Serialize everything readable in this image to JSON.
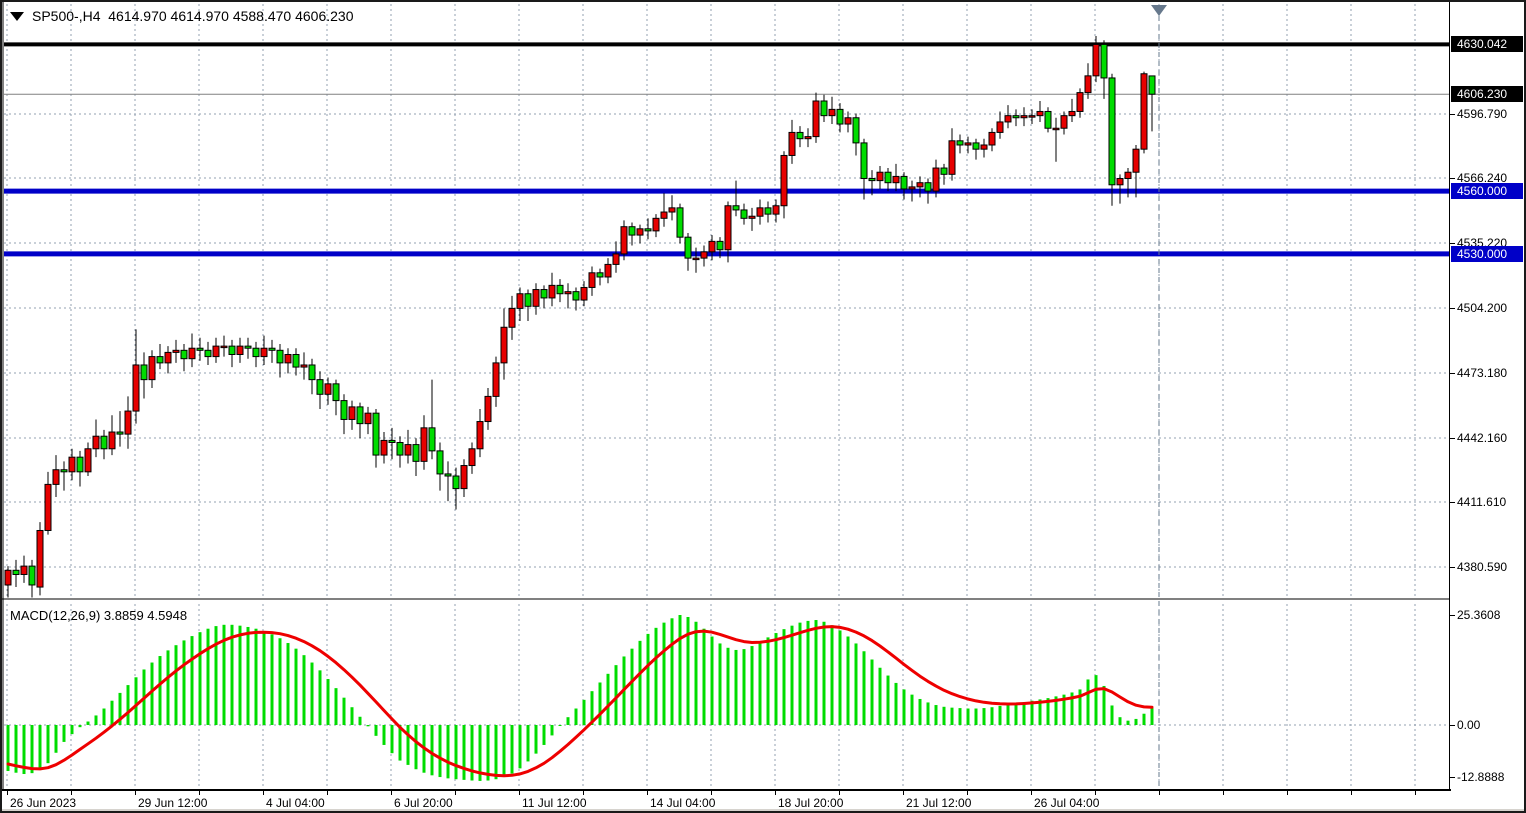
{
  "header": {
    "title": "SP500-,H4  4614.970 4614.970 4588.470 4606.230",
    "symbol": "SP500-",
    "timeframe": "H4",
    "ohlc": {
      "open": "4614.970",
      "high": "4614.970",
      "low": "4588.470",
      "close": "4606.230"
    }
  },
  "macd": {
    "label": "MACD(12,26,9) 3.8859 4.5948",
    "macd_value": "3.8859",
    "signal_value": "4.5948"
  },
  "colors": {
    "background": "#ffffff",
    "grid": "#93a1b1",
    "bull_candle": "#e60000",
    "bear_candle": "#00dc00",
    "candle_border": "#000000",
    "wick": "#000000",
    "histogram": "#00dc00",
    "signal_line": "#ee0000",
    "blue_level_line": "#0000c8",
    "black_level_line": "#000000",
    "bid_line": "#808080",
    "marker": "#66788c",
    "axis_text": "#000000"
  },
  "price_axis": {
    "ticks": [
      {
        "label": "4596.790",
        "price": 4596.79
      },
      {
        "label": "4566.240",
        "price": 4566.24
      },
      {
        "label": "4535.220",
        "price": 4535.22
      },
      {
        "label": "4504.200",
        "price": 4504.2
      },
      {
        "label": "4473.180",
        "price": 4473.18
      },
      {
        "label": "4442.160",
        "price": 4442.16
      },
      {
        "label": "4411.610",
        "price": 4411.61
      },
      {
        "label": "4380.590",
        "price": 4380.59
      }
    ],
    "markers": [
      {
        "label": "4630.042",
        "price": 4630.042,
        "bg": "#000000",
        "name": "level-label-4630"
      },
      {
        "label": "4606.230",
        "price": 4606.23,
        "bg": "#000000",
        "name": "bid-price-label"
      },
      {
        "label": "4560.000",
        "price": 4560.0,
        "bg": "#0000c8",
        "name": "level-label-4560"
      },
      {
        "label": "4530.000",
        "price": 4530.0,
        "bg": "#0000c8",
        "name": "level-label-4530"
      }
    ]
  },
  "macd_axis": {
    "labels": [
      {
        "label": "25.3608",
        "value": 25.3608
      },
      {
        "label": "0.00",
        "value": 0.0
      },
      {
        "label": "-12.8888",
        "value": -12.8888
      }
    ]
  },
  "time_axis": {
    "labels": [
      "26 Jun 2023",
      "29 Jun 12:00",
      "4 Jul 04:00",
      "6 Jul 20:00",
      "11 Jul 12:00",
      "14 Jul 04:00",
      "18 Jul 20:00",
      "21 Jul 12:00",
      "26 Jul 04:00"
    ]
  },
  "chart_data": {
    "type": "candlestick-with-macd",
    "symbol": "SP500-",
    "timeframe": "H4",
    "price_range_visible": [
      4365,
      4634
    ],
    "macd_range_visible": [
      -12.8888,
      25.3608
    ],
    "horizontal_lines": [
      {
        "price": 4630.042,
        "color": "#000000",
        "width": 4,
        "label": "4630.042"
      },
      {
        "price": 4606.23,
        "color": "#808080",
        "width": 1,
        "label": "4606.230",
        "role": "bid"
      },
      {
        "price": 4560.0,
        "color": "#0000c8",
        "width": 5,
        "label": "4560.000"
      },
      {
        "price": 4530.0,
        "color": "#0000c8",
        "width": 5,
        "label": "4530.000"
      }
    ],
    "candles": [
      [
        4372,
        4381,
        4366,
        4379
      ],
      [
        4379,
        4384,
        4371,
        4377
      ],
      [
        4377,
        4386,
        4373,
        4381
      ],
      [
        4381,
        4384,
        4366,
        4372
      ],
      [
        4371,
        4402,
        4367,
        4398
      ],
      [
        4398,
        4426,
        4396,
        4420
      ],
      [
        4420,
        4434,
        4414,
        4427
      ],
      [
        4427,
        4431,
        4417,
        4426
      ],
      [
        4426,
        4437,
        4422,
        4433
      ],
      [
        4433,
        4436,
        4419,
        4426
      ],
      [
        4426,
        4440,
        4424,
        4437
      ],
      [
        4437,
        4451,
        4433,
        4443
      ],
      [
        4443,
        4446,
        4432,
        4437
      ],
      [
        4437,
        4453,
        4434,
        4445
      ],
      [
        4445,
        4455,
        4438,
        4444
      ],
      [
        4444,
        4462,
        4437,
        4455
      ],
      [
        4455,
        4494,
        4449,
        4477
      ],
      [
        4477,
        4483,
        4461,
        4470
      ],
      [
        4470,
        4484,
        4466,
        4481
      ],
      [
        4481,
        4487,
        4475,
        4478
      ],
      [
        4478,
        4486,
        4473,
        4483
      ],
      [
        4483,
        4489,
        4478,
        4484
      ],
      [
        4484,
        4487,
        4474,
        4480
      ],
      [
        4480,
        4492,
        4476,
        4485
      ],
      [
        4485,
        4490,
        4479,
        4484
      ],
      [
        4484,
        4488,
        4477,
        4481
      ],
      [
        4481,
        4490,
        4478,
        4486
      ],
      [
        4486,
        4491,
        4481,
        4486
      ],
      [
        4486,
        4489,
        4476,
        4482
      ],
      [
        4482,
        4490,
        4478,
        4486
      ],
      [
        4486,
        4490,
        4480,
        4485
      ],
      [
        4485,
        4488,
        4476,
        4481
      ],
      [
        4481,
        4491,
        4477,
        4485
      ],
      [
        4485,
        4489,
        4478,
        4484
      ],
      [
        4484,
        4487,
        4471,
        4478
      ],
      [
        4478,
        4485,
        4473,
        4482
      ],
      [
        4482,
        4485,
        4472,
        4476
      ],
      [
        4476,
        4483,
        4470,
        4477
      ],
      [
        4477,
        4480,
        4463,
        4470
      ],
      [
        4470,
        4474,
        4456,
        4463
      ],
      [
        4463,
        4471,
        4458,
        4468
      ],
      [
        4468,
        4470,
        4453,
        4460
      ],
      [
        4460,
        4463,
        4444,
        4451
      ],
      [
        4451,
        4460,
        4446,
        4457
      ],
      [
        4457,
        4459,
        4442,
        4449
      ],
      [
        4449,
        4457,
        4444,
        4454
      ],
      [
        4454,
        4456,
        4428,
        4434
      ],
      [
        4434,
        4445,
        4430,
        4441
      ],
      [
        4441,
        4447,
        4432,
        4440
      ],
      [
        4440,
        4443,
        4428,
        4434
      ],
      [
        4434,
        4446,
        4430,
        4439
      ],
      [
        4439,
        4442,
        4424,
        4431
      ],
      [
        4431,
        4453,
        4427,
        4447
      ],
      [
        4447,
        4470,
        4432,
        4436
      ],
      [
        4436,
        4440,
        4417,
        4425
      ],
      [
        4425,
        4431,
        4412,
        4424
      ],
      [
        4424,
        4428,
        4408,
        4418
      ],
      [
        4418,
        4432,
        4414,
        4429
      ],
      [
        4429,
        4440,
        4425,
        4437
      ],
      [
        4437,
        4456,
        4433,
        4450
      ],
      [
        4450,
        4466,
        4446,
        4462
      ],
      [
        4462,
        4481,
        4457,
        4478
      ],
      [
        4478,
        4504,
        4470,
        4495
      ],
      [
        4495,
        4510,
        4489,
        4504
      ],
      [
        4504,
        4514,
        4498,
        4511
      ],
      [
        4511,
        4513,
        4498,
        4505
      ],
      [
        4505,
        4516,
        4501,
        4513
      ],
      [
        4513,
        4515,
        4504,
        4509
      ],
      [
        4509,
        4521,
        4505,
        4515
      ],
      [
        4515,
        4518,
        4507,
        4511
      ],
      [
        4511,
        4516,
        4504,
        4512
      ],
      [
        4512,
        4514,
        4503,
        4508
      ],
      [
        4508,
        4517,
        4505,
        4514
      ],
      [
        4514,
        4524,
        4510,
        4521
      ],
      [
        4521,
        4523,
        4515,
        4519
      ],
      [
        4519,
        4528,
        4516,
        4525
      ],
      [
        4525,
        4536,
        4521,
        4530
      ],
      [
        4530,
        4546,
        4527,
        4543
      ],
      [
        4543,
        4545,
        4534,
        4539
      ],
      [
        4539,
        4544,
        4535,
        4542
      ],
      [
        4542,
        4547,
        4537,
        4541
      ],
      [
        4541,
        4549,
        4538,
        4547
      ],
      [
        4547,
        4559,
        4543,
        4550
      ],
      [
        4550,
        4558,
        4546,
        4552
      ],
      [
        4552,
        4554,
        4535,
        4538
      ],
      [
        4538,
        4540,
        4522,
        4528
      ],
      [
        4528,
        4533,
        4521,
        4528
      ],
      [
        4528,
        4534,
        4524,
        4531
      ],
      [
        4531,
        4539,
        4527,
        4536
      ],
      [
        4536,
        4538,
        4528,
        4532
      ],
      [
        4532,
        4555,
        4526,
        4553
      ],
      [
        4553,
        4565,
        4548,
        4551
      ],
      [
        4551,
        4554,
        4544,
        4547
      ],
      [
        4547,
        4552,
        4541,
        4548
      ],
      [
        4548,
        4556,
        4544,
        4552
      ],
      [
        4552,
        4555,
        4545,
        4549
      ],
      [
        4549,
        4556,
        4545,
        4553
      ],
      [
        4553,
        4579,
        4547,
        4577
      ],
      [
        4577,
        4594,
        4573,
        4588
      ],
      [
        4588,
        4591,
        4581,
        4585
      ],
      [
        4585,
        4590,
        4581,
        4586
      ],
      [
        4586,
        4607,
        4583,
        4603
      ],
      [
        4603,
        4606,
        4593,
        4596
      ],
      [
        4596,
        4605,
        4592,
        4599
      ],
      [
        4599,
        4602,
        4588,
        4592
      ],
      [
        4592,
        4598,
        4588,
        4595
      ],
      [
        4595,
        4597,
        4577,
        4583
      ],
      [
        4583,
        4585,
        4556,
        4566
      ],
      [
        4566,
        4570,
        4558,
        4565
      ],
      [
        4565,
        4572,
        4561,
        4569
      ],
      [
        4569,
        4571,
        4560,
        4564
      ],
      [
        4564,
        4573,
        4560,
        4567
      ],
      [
        4567,
        4569,
        4556,
        4561
      ],
      [
        4561,
        4565,
        4555,
        4562
      ],
      [
        4562,
        4567,
        4557,
        4564
      ],
      [
        4564,
        4566,
        4554,
        4560
      ],
      [
        4560,
        4575,
        4557,
        4571
      ],
      [
        4571,
        4573,
        4563,
        4568
      ],
      [
        4568,
        4590,
        4565,
        4584
      ],
      [
        4584,
        4587,
        4578,
        4582
      ],
      [
        4582,
        4586,
        4578,
        4583
      ],
      [
        4583,
        4585,
        4575,
        4580
      ],
      [
        4580,
        4585,
        4576,
        4582
      ],
      [
        4582,
        4590,
        4579,
        4588
      ],
      [
        4588,
        4598,
        4585,
        4593
      ],
      [
        4593,
        4601,
        4590,
        4596
      ],
      [
        4596,
        4599,
        4591,
        4595
      ],
      [
        4595,
        4600,
        4591,
        4596
      ],
      [
        4596,
        4599,
        4592,
        4596
      ],
      [
        4596,
        4603,
        4593,
        4598
      ],
      [
        4598,
        4600,
        4588,
        4590
      ],
      [
        4590,
        4595,
        4574,
        4590
      ],
      [
        4590,
        4598,
        4587,
        4596
      ],
      [
        4596,
        4604,
        4593,
        4598
      ],
      [
        4598,
        4609,
        4595,
        4607
      ],
      [
        4607,
        4621,
        4604,
        4615
      ],
      [
        4615,
        4634,
        4612,
        4630
      ],
      [
        4630,
        4632,
        4604,
        4614
      ],
      [
        4614,
        4616,
        4553,
        4563
      ],
      [
        4563,
        4568,
        4554,
        4566
      ],
      [
        4566,
        4571,
        4557,
        4569
      ],
      [
        4569,
        4582,
        4557,
        4580
      ],
      [
        4580,
        4617,
        4578,
        4616
      ],
      [
        4614.97,
        4614.97,
        4588.47,
        4606.23
      ]
    ],
    "macd_histogram": [
      -10.6,
      -11.0,
      -11.3,
      -11.1,
      -10.4,
      -8.8,
      -6.4,
      -3.9,
      -2.1,
      -0.5,
      0.8,
      2.2,
      3.8,
      5.6,
      7.4,
      9.2,
      11.0,
      12.8,
      14.4,
      15.9,
      17.2,
      18.4,
      19.5,
      20.5,
      21.4,
      22.2,
      22.8,
      23.1,
      23.1,
      22.9,
      22.6,
      22.2,
      21.6,
      20.9,
      20.0,
      18.9,
      17.6,
      16.1,
      14.4,
      12.6,
      10.6,
      8.5,
      6.3,
      4.1,
      1.9,
      -0.3,
      -2.5,
      -4.6,
      -6.5,
      -8.2,
      -9.2,
      -10.2,
      -11.0,
      -11.6,
      -12.0,
      -12.3,
      -12.5,
      -12.65,
      -12.8,
      -12.89,
      -12.8,
      -12.5,
      -12.0,
      -11.2,
      -10.0,
      -8.4,
      -6.6,
      -4.6,
      -2.4,
      -0.2,
      1.8,
      3.8,
      5.8,
      7.8,
      9.8,
      11.8,
      13.8,
      15.8,
      17.6,
      19.4,
      21.0,
      22.4,
      23.6,
      24.6,
      25.36,
      24.9,
      23.8,
      22.2,
      20.4,
      18.8,
      17.8,
      17.3,
      17.5,
      18.2,
      19.2,
      20.2,
      21.2,
      22.1,
      22.9,
      23.6,
      24.0,
      24.2,
      23.8,
      23.0,
      21.8,
      20.4,
      18.8,
      17.0,
      15.1,
      13.2,
      11.4,
      9.7,
      8.2,
      7.0,
      6.0,
      5.2,
      4.6,
      4.2,
      4.0,
      3.9,
      3.8,
      3.8,
      3.9,
      4.1,
      4.4,
      4.7,
      5.0,
      5.3,
      5.6,
      5.9,
      6.2,
      6.6,
      7.0,
      7.5,
      8.2,
      10.5,
      11.5,
      9.0,
      4.5,
      1.8,
      1.0,
      1.4,
      2.6,
      3.8859
    ],
    "signal_ema_period": 9,
    "signal_seed": -8.6
  }
}
